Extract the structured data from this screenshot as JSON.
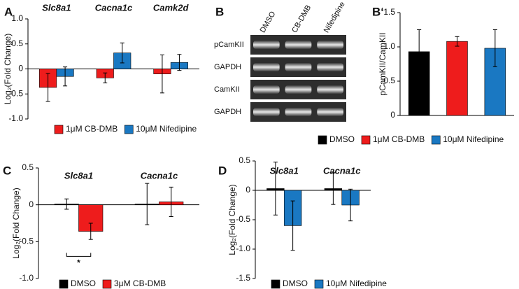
{
  "chart_data": [
    {
      "type": "bar",
      "panel_label": "A",
      "ylabel": "Log₂(Fold Change)",
      "categories": [
        "Slc8a1",
        "Cacna1c",
        "Camk2d"
      ],
      "series": [
        {
          "name": "1μM CB-DMB",
          "color": "#ee1c1c",
          "values": [
            -0.37,
            -0.18,
            -0.1
          ],
          "errors": [
            0.28,
            0.1,
            0.38
          ]
        },
        {
          "name": "10μM Nifedipine",
          "color": "#1a78c2",
          "values": [
            -0.15,
            0.32,
            0.13
          ],
          "errors": [
            0.19,
            0.2,
            0.16
          ]
        }
      ],
      "ylim": [
        -1,
        1
      ],
      "yticks": [
        {
          "value": -1,
          "label": "-1.0"
        },
        -0.5,
        0,
        0.5,
        {
          "value": 1,
          "label": "1.0"
        }
      ]
    },
    {
      "type": "bar",
      "panel_label": "B‘",
      "ylabel": "pCamKII/CamKII",
      "categories": [
        "DMSO",
        "1μM CB-DMB",
        "10μM Nifedipine"
      ],
      "colors": [
        "#000000",
        "#ee1c1c",
        "#1a78c2"
      ],
      "values": [
        0.93,
        1.08,
        0.98
      ],
      "errors": [
        0.32,
        0.07,
        0.27
      ],
      "ylim": [
        0,
        1.5
      ],
      "yticks": [
        0,
        0.5,
        {
          "value": 1,
          "label": "1.0"
        },
        1.5
      ]
    },
    {
      "type": "bar",
      "panel_label": "C",
      "ylabel": "Log₂(Fold Change)",
      "categories": [
        "Slc8a1",
        "Cacna1c"
      ],
      "series": [
        {
          "name": "DMSO",
          "color": "#000000",
          "values": [
            0.01,
            0.01
          ],
          "errors": [
            0.07,
            0.28
          ]
        },
        {
          "name": "3μM CB-DMB",
          "color": "#ee1c1c",
          "values": [
            -0.36,
            0.04
          ],
          "errors": [
            0.11,
            0.2
          ]
        }
      ],
      "annotation": "*",
      "ylim": [
        -1,
        0.5
      ],
      "yticks": [
        {
          "value": -1,
          "label": "-1.0"
        },
        -0.5,
        0,
        0.5
      ]
    },
    {
      "type": "bar",
      "panel_label": "D",
      "ylabel": "Log₂(Fold Change)",
      "categories": [
        "Slc8a1",
        "Cacna1c"
      ],
      "series": [
        {
          "name": "DMSO",
          "color": "#000000",
          "values": [
            0.03,
            0.03
          ],
          "errors": [
            0.45,
            0.27
          ]
        },
        {
          "name": "10μM Nifedipine",
          "color": "#1a78c2",
          "values": [
            -0.6,
            -0.25
          ],
          "errors": [
            0.42,
            0.27
          ]
        }
      ],
      "ylim": [
        -1.5,
        0.5
      ],
      "yticks": [
        -1.5,
        {
          "value": -1,
          "label": "-1.0"
        },
        -0.5,
        0,
        0.5
      ]
    }
  ],
  "blot": {
    "panel_label": "B",
    "lanes": [
      "DMSO",
      "CB-DMB",
      "Nifedipine"
    ],
    "rows": [
      "pCamKII",
      "GAPDH",
      "CamKII",
      "GAPDH"
    ]
  }
}
